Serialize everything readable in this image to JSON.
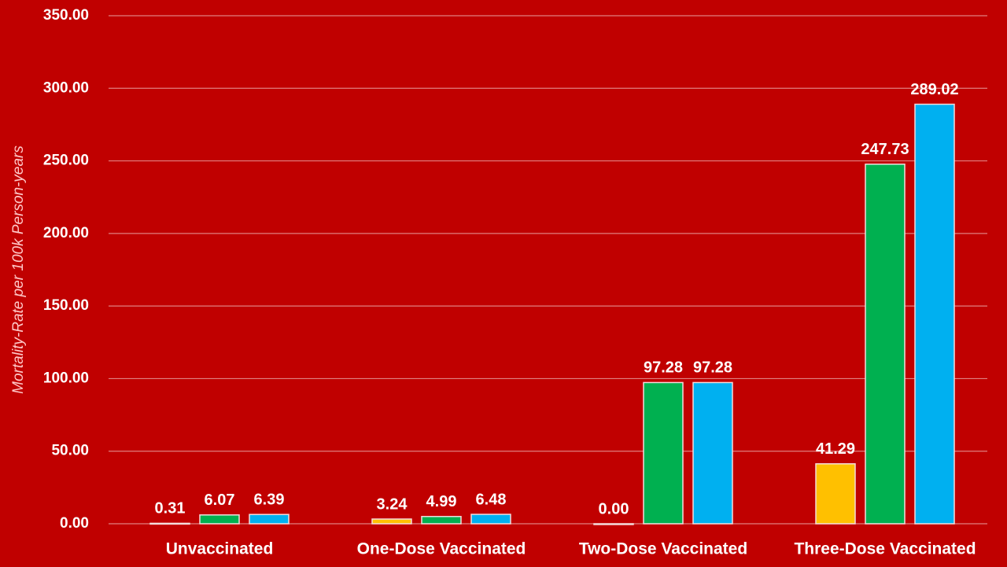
{
  "chart_data": {
    "type": "bar",
    "y_label": "Mortality-Rate per 100k Person-years",
    "categories": [
      "Unvaccinated",
      "One-Dose Vaccinated",
      "Two-Dose Vaccinated",
      "Three-Dose Vaccinated"
    ],
    "series": [
      {
        "color": "#ffc000",
        "values": [
          0.31,
          3.24,
          0,
          41.29
        ],
        "value_labels": [
          "0.31",
          "3.24",
          "0.00",
          "41.29"
        ]
      },
      {
        "color": "#00b050",
        "values": [
          6.07,
          4.99,
          97.28,
          247.73
        ]
      },
      {
        "color": "#00b0f0",
        "values": [
          6.39,
          6.48,
          97.28,
          289.02
        ]
      }
    ],
    "ylim": [
      0,
      350
    ],
    "yticks": [
      {
        "value": 0,
        "label": "0.00"
      },
      {
        "value": 50,
        "label": "50.00"
      },
      {
        "value": 100,
        "label": "100.00"
      },
      {
        "value": 150,
        "label": "150.00"
      },
      {
        "value": 200,
        "label": "200.00"
      },
      {
        "value": 250,
        "label": "250.00"
      },
      {
        "value": 300,
        "label": "300.00"
      },
      {
        "value": 350,
        "label": "350.00"
      }
    ],
    "grid": true
  }
}
